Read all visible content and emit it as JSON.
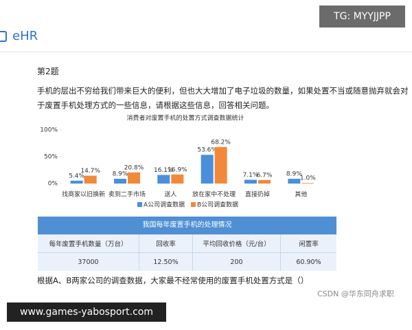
{
  "header": {
    "app": "eHR",
    "badge": "TG: MYYJJPP"
  },
  "question": {
    "number": "第2题",
    "lines": [
      "手机的层出不穷给我们带来巨大的便利，但也大大增加了电子垃圾的数量，如果处置不当或随意抛弃就会对",
      "于废置手机处理方式的一些信息，请根据这些信息，回答相关问题。"
    ],
    "prompt": "根据A、B两家公司的调查数据，大家最不经常使用的废置手机处置方式是（）"
  },
  "chart_data": {
    "type": "bar",
    "title": "消费者对废置手机的处置方式调查数据统计",
    "categories": [
      "找商家以旧换新",
      "卖到二手市场",
      "送人",
      "放在家中不处理",
      "直接扔掉",
      "其他"
    ],
    "series": [
      {
        "name": "A公司调查数据",
        "color": "#4a8fdc",
        "values": [
          5.4,
          8.9,
          16.1,
          53.6,
          7.1,
          8.9
        ],
        "value_labels": [
          "5.4%",
          "8.9%",
          "16.1%",
          "53.6%",
          "7.1%",
          "8.9%"
        ]
      },
      {
        "name": "B公司调查数据",
        "color": "#f2893a",
        "values": [
          14.7,
          20.8,
          16.9,
          68.2,
          6.7,
          1.0
        ],
        "value_labels": [
          "14.7%",
          "20.8%",
          "16.9%",
          "68.2%",
          "6.7%",
          "1.0%"
        ]
      }
    ],
    "ylim": [
      0,
      100
    ],
    "yticks": [
      {
        "value": 0,
        "label": "0%"
      },
      {
        "value": 50,
        "label": "50%"
      },
      {
        "value": 100,
        "label": "100%"
      }
    ]
  },
  "table": {
    "title": "我国每年废置手机的处理情况",
    "rows": [
      [
        "每年废置手机数量（万台）",
        "回收率",
        "平均回收价格（元/台）",
        "闲置率"
      ],
      [
        "37000",
        "12.50%",
        "200",
        "60.90%"
      ]
    ]
  },
  "footer": {
    "credit": "CSDN @华东同舟求职",
    "watermark": "www.games-yabosport.com"
  }
}
